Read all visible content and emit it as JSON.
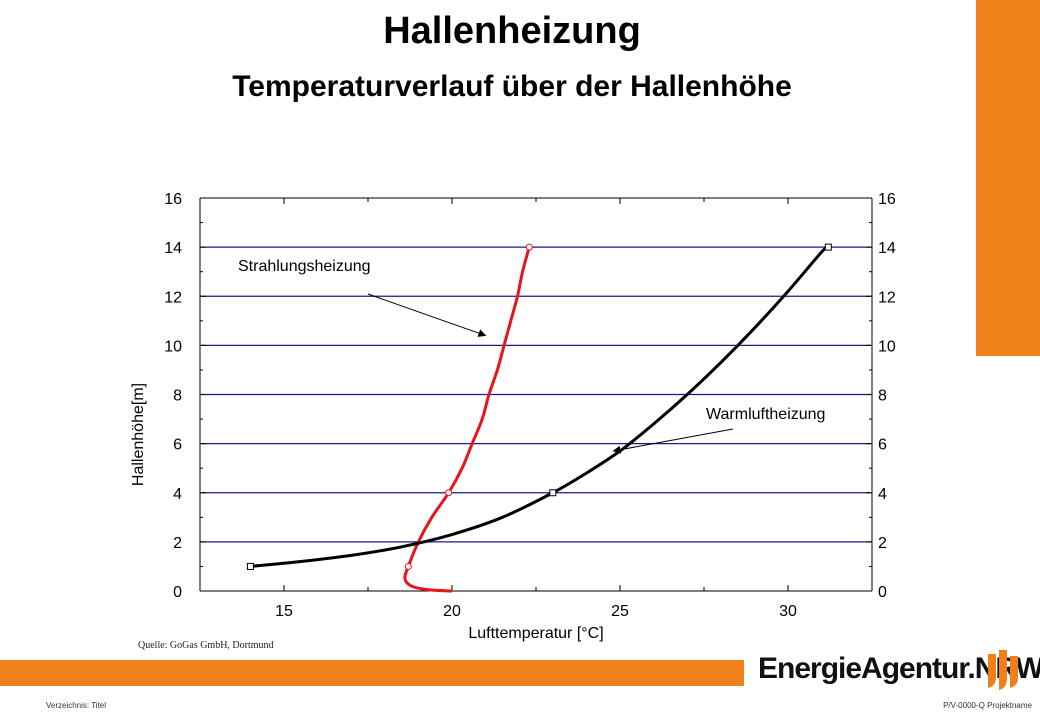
{
  "header": {
    "title": "Hallenheizung",
    "subtitle": "Temperaturverlauf über der Hallenhöhe"
  },
  "chart_data": {
    "type": "line",
    "xlabel": "Lufttemperatur [°C]",
    "ylabel": "Hallenhöhe[m]",
    "xlim": [
      12.5,
      32.5
    ],
    "ylim": [
      0,
      16
    ],
    "x_ticks": [
      "15",
      "20",
      "25",
      "30"
    ],
    "y_ticks": [
      "0",
      "2",
      "4",
      "6",
      "8",
      "10",
      "12",
      "14",
      "16"
    ],
    "grid": "horizontal",
    "series": [
      {
        "name": "Strahlungsheizung",
        "color": "#e8141b",
        "marker": "circle",
        "points": [
          [
            20.0,
            0.0
          ],
          [
            19.3,
            0.05
          ],
          [
            18.8,
            0.2
          ],
          [
            18.6,
            0.5
          ],
          [
            18.7,
            1.0
          ],
          [
            19.0,
            2.0
          ],
          [
            19.4,
            3.0
          ],
          [
            19.9,
            4.0
          ],
          [
            20.3,
            5.0
          ],
          [
            20.6,
            6.0
          ],
          [
            20.9,
            7.0
          ],
          [
            21.1,
            8.0
          ],
          [
            21.35,
            9.0
          ],
          [
            21.55,
            10.0
          ],
          [
            21.75,
            11.0
          ],
          [
            21.95,
            12.0
          ],
          [
            22.1,
            13.0
          ],
          [
            22.3,
            14.0
          ]
        ],
        "markers": [
          [
            18.7,
            1.0
          ],
          [
            19.9,
            4.0
          ],
          [
            22.3,
            14.0
          ]
        ]
      },
      {
        "name": "Warmluftheizung",
        "color": "#000000",
        "marker": "square",
        "points": [
          [
            14.0,
            1.0
          ],
          [
            15.5,
            1.2
          ],
          [
            17.0,
            1.45
          ],
          [
            18.5,
            1.8
          ],
          [
            20.0,
            2.3
          ],
          [
            21.5,
            3.0
          ],
          [
            23.0,
            4.0
          ],
          [
            24.0,
            4.8
          ],
          [
            25.0,
            5.7
          ],
          [
            26.0,
            6.8
          ],
          [
            27.0,
            8.0
          ],
          [
            28.0,
            9.3
          ],
          [
            29.0,
            10.7
          ],
          [
            30.0,
            12.2
          ],
          [
            31.0,
            13.8
          ],
          [
            31.2,
            14.0
          ]
        ],
        "markers": [
          [
            14.0,
            1.0
          ],
          [
            23.0,
            4.0
          ],
          [
            31.2,
            14.0
          ]
        ]
      }
    ],
    "annotations": [
      "Strahlungsheizung",
      "Warmluftheizung"
    ]
  },
  "source": "Quelle: GoGas GmbH, Dortmund",
  "logo": {
    "text": "EnergieAgentur.NRW"
  },
  "footer": {
    "left": "Verzeichnis: Titel",
    "right": "P/V-0000-Q  Projektname"
  },
  "colors": {
    "accent": "#f08019",
    "grid": "#1a1a8c",
    "red_series": "#e8141b"
  }
}
